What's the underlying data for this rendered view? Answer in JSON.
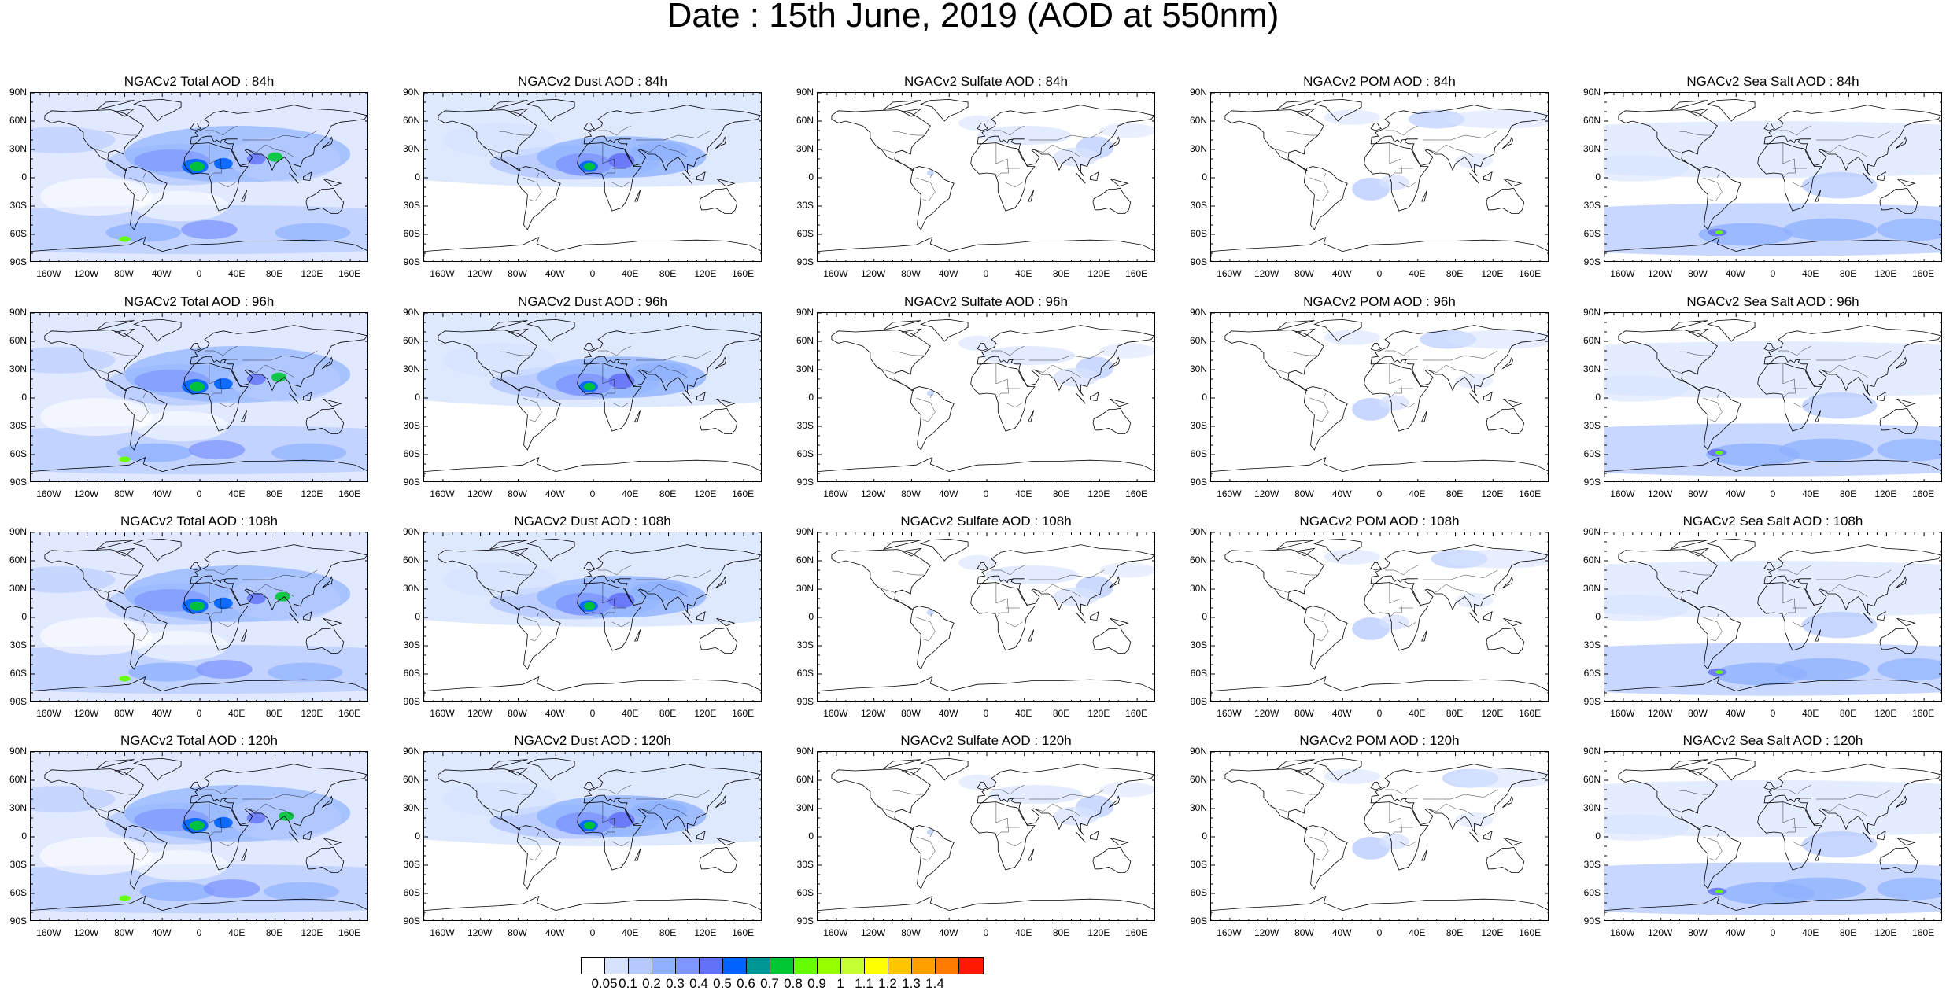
{
  "figure": {
    "title": "Date : 15th June, 2019 (AOD at 550nm)"
  },
  "panel_titles": [
    [
      "NGACv2 Total AOD : 84h",
      "NGACv2 Dust AOD : 84h",
      "NGACv2 Sulfate AOD : 84h",
      "NGACv2 POM AOD : 84h",
      "NGACv2 Sea Salt AOD : 84h"
    ],
    [
      "NGACv2 Total AOD : 96h",
      "NGACv2 Dust AOD : 96h",
      "NGACv2 Sulfate AOD : 96h",
      "NGACv2 POM AOD : 96h",
      "NGACv2 Sea Salt AOD : 96h"
    ],
    [
      "NGACv2 Total AOD : 108h",
      "NGACv2 Dust AOD : 108h",
      "NGACv2 Sulfate AOD : 108h",
      "NGACv2 POM AOD : 108h",
      "NGACv2 Sea Salt AOD : 108h"
    ],
    [
      "NGACv2 Total AOD : 120h",
      "NGACv2 Dust AOD : 120h",
      "NGACv2 Sulfate AOD : 120h",
      "NGACv2 POM AOD : 120h",
      "NGACv2 Sea Salt  AOD : 120h"
    ]
  ],
  "lat_ticks": [
    "90N",
    "60N",
    "30N",
    "0",
    "30S",
    "60S",
    "90S"
  ],
  "lon_ticks": [
    "160W",
    "120W",
    "80W",
    "40W",
    "0",
    "40E",
    "80E",
    "120E",
    "160E"
  ],
  "colorbar": {
    "labels": [
      "0.05",
      "0.1",
      "0.2",
      "0.3",
      "0.4",
      "0.5",
      "0.6",
      "0.7",
      "0.8",
      "0.9",
      "1",
      "1.1",
      "1.2",
      "1.3",
      "1.4"
    ],
    "colors": [
      "#ffffff",
      "#d6e2ff",
      "#b5c9ff",
      "#8eb2ff",
      "#7f96ff",
      "#6370f8",
      "#0063ff",
      "#009696",
      "#00c633",
      "#63ff00",
      "#96ff00",
      "#c6ff33",
      "#ffff00",
      "#ffc600",
      "#ffa000",
      "#ff7c00",
      "#ff1900"
    ]
  }
}
